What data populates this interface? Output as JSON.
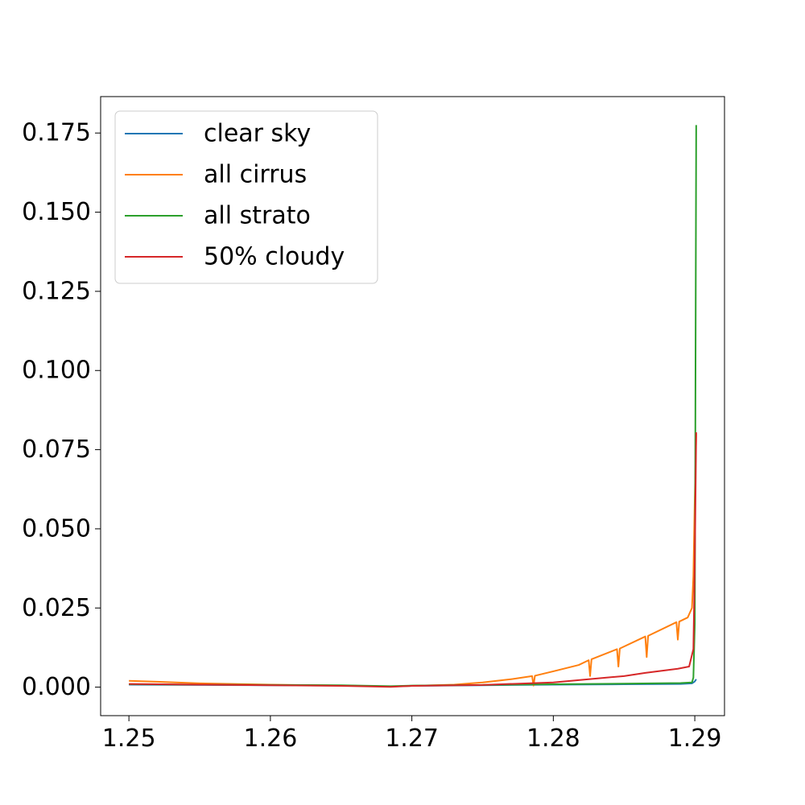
{
  "chart_data": {
    "type": "line",
    "title": "",
    "xlabel": "",
    "ylabel": "",
    "xlim": [
      1.248,
      1.2921
    ],
    "ylim": [
      -0.009,
      0.1865
    ],
    "grid": false,
    "legend_position": "top-left",
    "x_ticks": [
      {
        "value": 1.25,
        "label": "1.25"
      },
      {
        "value": 1.26,
        "label": "1.26"
      },
      {
        "value": 1.27,
        "label": "1.27"
      },
      {
        "value": 1.28,
        "label": "1.28"
      },
      {
        "value": 1.29,
        "label": "1.29"
      }
    ],
    "y_ticks": [
      {
        "value": 0.0,
        "label": "0.000"
      },
      {
        "value": 0.025,
        "label": "0.025"
      },
      {
        "value": 0.05,
        "label": "0.050"
      },
      {
        "value": 0.075,
        "label": "0.075"
      },
      {
        "value": 0.1,
        "label": "0.100"
      },
      {
        "value": 0.125,
        "label": "0.125"
      },
      {
        "value": 0.15,
        "label": "0.150"
      },
      {
        "value": 0.175,
        "label": "0.175"
      }
    ],
    "series": [
      {
        "name": "clear sky",
        "color": "#1f77b4",
        "points": [
          [
            1.25,
            0.0008
          ],
          [
            1.255,
            0.0007
          ],
          [
            1.26,
            0.0006
          ],
          [
            1.265,
            0.0005
          ],
          [
            1.2685,
            0.0002
          ],
          [
            1.27,
            0.0004
          ],
          [
            1.275,
            0.0006
          ],
          [
            1.28,
            0.0008
          ],
          [
            1.285,
            0.0009
          ],
          [
            1.289,
            0.001
          ],
          [
            1.2898,
            0.0012
          ],
          [
            1.29,
            0.0018
          ],
          [
            1.2901,
            0.0025
          ]
        ]
      },
      {
        "name": "all cirrus",
        "color": "#ff7f0e",
        "points": [
          [
            1.25,
            0.002
          ],
          [
            1.252,
            0.0017
          ],
          [
            1.255,
            0.0012
          ],
          [
            1.26,
            0.0008
          ],
          [
            1.265,
            0.0005
          ],
          [
            1.2685,
            0.0002
          ],
          [
            1.27,
            0.0004
          ],
          [
            1.273,
            0.0008
          ],
          [
            1.275,
            0.0015
          ],
          [
            1.277,
            0.0025
          ],
          [
            1.2785,
            0.0035
          ],
          [
            1.2786,
            0.0005
          ],
          [
            1.2787,
            0.0036
          ],
          [
            1.28,
            0.005
          ],
          [
            1.2818,
            0.007
          ],
          [
            1.2825,
            0.0085
          ],
          [
            1.2826,
            0.0035
          ],
          [
            1.2827,
            0.0088
          ],
          [
            1.2845,
            0.012
          ],
          [
            1.2846,
            0.0065
          ],
          [
            1.2847,
            0.0122
          ],
          [
            1.2865,
            0.016
          ],
          [
            1.2866,
            0.0095
          ],
          [
            1.2867,
            0.0162
          ],
          [
            1.2887,
            0.0205
          ],
          [
            1.2888,
            0.015
          ],
          [
            1.2889,
            0.0207
          ],
          [
            1.2895,
            0.022
          ],
          [
            1.2898,
            0.025
          ],
          [
            1.2899,
            0.035
          ],
          [
            1.29,
            0.06
          ],
          [
            1.2901,
            0.08
          ]
        ]
      },
      {
        "name": "all strato",
        "color": "#2ca02c",
        "points": [
          [
            1.25,
            0.0009
          ],
          [
            1.255,
            0.0008
          ],
          [
            1.26,
            0.0007
          ],
          [
            1.265,
            0.0006
          ],
          [
            1.2685,
            0.0003
          ],
          [
            1.27,
            0.0005
          ],
          [
            1.275,
            0.0007
          ],
          [
            1.28,
            0.0009
          ],
          [
            1.285,
            0.0011
          ],
          [
            1.289,
            0.0013
          ],
          [
            1.2898,
            0.0015
          ],
          [
            1.2899,
            0.003
          ],
          [
            1.29,
            0.02
          ],
          [
            1.2901,
            0.1775
          ]
        ]
      },
      {
        "name": "50% cloudy",
        "color": "#d62728",
        "points": [
          [
            1.25,
            0.001
          ],
          [
            1.255,
            0.0008
          ],
          [
            1.26,
            0.0006
          ],
          [
            1.265,
            0.0004
          ],
          [
            1.2685,
            0.0001
          ],
          [
            1.27,
            0.0004
          ],
          [
            1.275,
            0.0007
          ],
          [
            1.28,
            0.0015
          ],
          [
            1.2825,
            0.0025
          ],
          [
            1.285,
            0.0035
          ],
          [
            1.2865,
            0.0045
          ],
          [
            1.2888,
            0.0058
          ],
          [
            1.2896,
            0.0065
          ],
          [
            1.2899,
            0.012
          ],
          [
            1.29,
            0.04
          ],
          [
            1.2901,
            0.0805
          ]
        ]
      }
    ]
  }
}
